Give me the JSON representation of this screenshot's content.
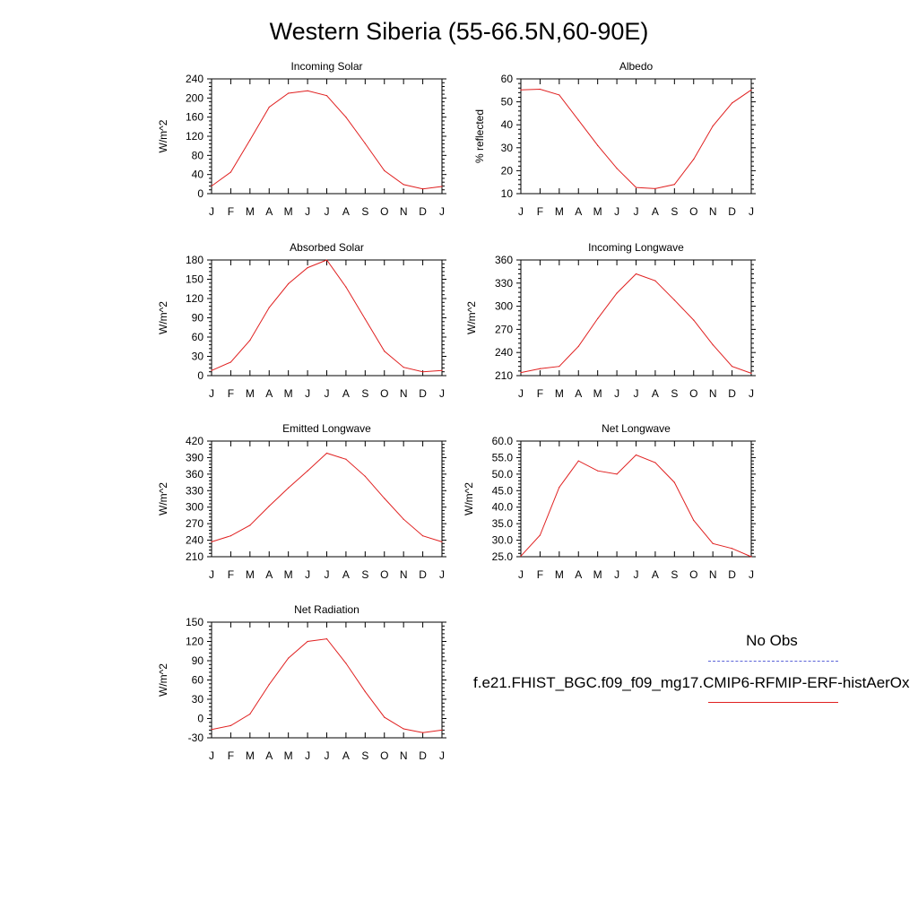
{
  "title": "Western Siberia (55-66.5N,60-90E)",
  "legend": {
    "obs_label": "No Obs",
    "obs_color": "#5b63d8",
    "model_label": "f.e21.FHIST_BGC.f09_f09_mg17.CMIP6-RFMIP-ERF-histAerOx",
    "model_color": "#e02020"
  },
  "chart_data": [
    {
      "type": "line",
      "title": "Incoming Solar",
      "ylabel": "W/m^2",
      "x": [
        "J",
        "F",
        "M",
        "A",
        "M",
        "J",
        "J",
        "A",
        "S",
        "O",
        "N",
        "D",
        "J"
      ],
      "ylim": [
        0,
        240
      ],
      "yticks": [
        "0",
        "40",
        "80",
        "120",
        "160",
        "200",
        "240"
      ],
      "series": [
        {
          "values": [
            16,
            45,
            112,
            181,
            210,
            215,
            205,
            160,
            105,
            48,
            19,
            10,
            15
          ]
        }
      ]
    },
    {
      "type": "line",
      "title": "Albedo",
      "ylabel": "% reflected",
      "x": [
        "J",
        "F",
        "M",
        "A",
        "M",
        "J",
        "J",
        "A",
        "S",
        "O",
        "N",
        "D",
        "J"
      ],
      "ylim": [
        10,
        60
      ],
      "yticks": [
        "10",
        "20",
        "30",
        "40",
        "50",
        "60"
      ],
      "series": [
        {
          "values": [
            55.2,
            55.5,
            53,
            42,
            31,
            21,
            12.7,
            12.2,
            14,
            25,
            39.5,
            49.5,
            55.2
          ]
        }
      ]
    },
    {
      "type": "line",
      "title": "Absorbed Solar",
      "ylabel": "W/m^2",
      "x": [
        "J",
        "F",
        "M",
        "A",
        "M",
        "J",
        "J",
        "A",
        "S",
        "O",
        "N",
        "D",
        "J"
      ],
      "ylim": [
        0,
        180
      ],
      "yticks": [
        "0",
        "30",
        "60",
        "90",
        "120",
        "150",
        "180"
      ],
      "series": [
        {
          "values": [
            8,
            21,
            55,
            106,
            143,
            168,
            180,
            138,
            88,
            38,
            13,
            6,
            8
          ]
        }
      ]
    },
    {
      "type": "line",
      "title": "Incoming Longwave",
      "ylabel": "W/m^2",
      "x": [
        "J",
        "F",
        "M",
        "A",
        "M",
        "J",
        "J",
        "A",
        "S",
        "O",
        "N",
        "D",
        "J"
      ],
      "ylim": [
        210,
        360
      ],
      "yticks": [
        "210",
        "240",
        "270",
        "300",
        "330",
        "360"
      ],
      "series": [
        {
          "values": [
            214,
            219,
            222,
            248,
            284,
            317,
            342,
            333,
            308,
            282,
            250,
            222,
            213
          ]
        }
      ]
    },
    {
      "type": "line",
      "title": "Emitted Longwave",
      "ylabel": "W/m^2",
      "x": [
        "J",
        "F",
        "M",
        "A",
        "M",
        "J",
        "J",
        "A",
        "S",
        "O",
        "N",
        "D",
        "J"
      ],
      "ylim": [
        210,
        420
      ],
      "yticks": [
        "210",
        "240",
        "270",
        "300",
        "330",
        "360",
        "390",
        "420"
      ],
      "series": [
        {
          "values": [
            237,
            248,
            267,
            302,
            335,
            366,
            398,
            387,
            356,
            316,
            278,
            248,
            237
          ]
        }
      ]
    },
    {
      "type": "line",
      "title": "Net Longwave",
      "ylabel": "W/m^2",
      "x": [
        "J",
        "F",
        "M",
        "A",
        "M",
        "J",
        "J",
        "A",
        "S",
        "O",
        "N",
        "D",
        "J"
      ],
      "ylim": [
        25,
        60
      ],
      "yticks": [
        "25.0",
        "30.0",
        "35.0",
        "40.0",
        "45.0",
        "50.0",
        "55.0",
        "60.0"
      ],
      "series": [
        {
          "values": [
            25.2,
            31.5,
            46,
            54,
            51,
            50,
            55.8,
            53.5,
            47.5,
            36,
            29,
            27.5,
            25
          ]
        }
      ]
    },
    {
      "type": "line",
      "title": "Net Radiation",
      "ylabel": "W/m^2",
      "x": [
        "J",
        "F",
        "M",
        "A",
        "M",
        "J",
        "J",
        "A",
        "S",
        "O",
        "N",
        "D",
        "J"
      ],
      "ylim": [
        -30,
        150
      ],
      "yticks": [
        "-30",
        "0",
        "30",
        "60",
        "90",
        "120",
        "150"
      ],
      "series": [
        {
          "values": [
            -17,
            -11,
            7,
            53,
            94,
            120,
            124,
            86,
            42,
            2,
            -16,
            -22,
            -18
          ]
        }
      ]
    }
  ]
}
